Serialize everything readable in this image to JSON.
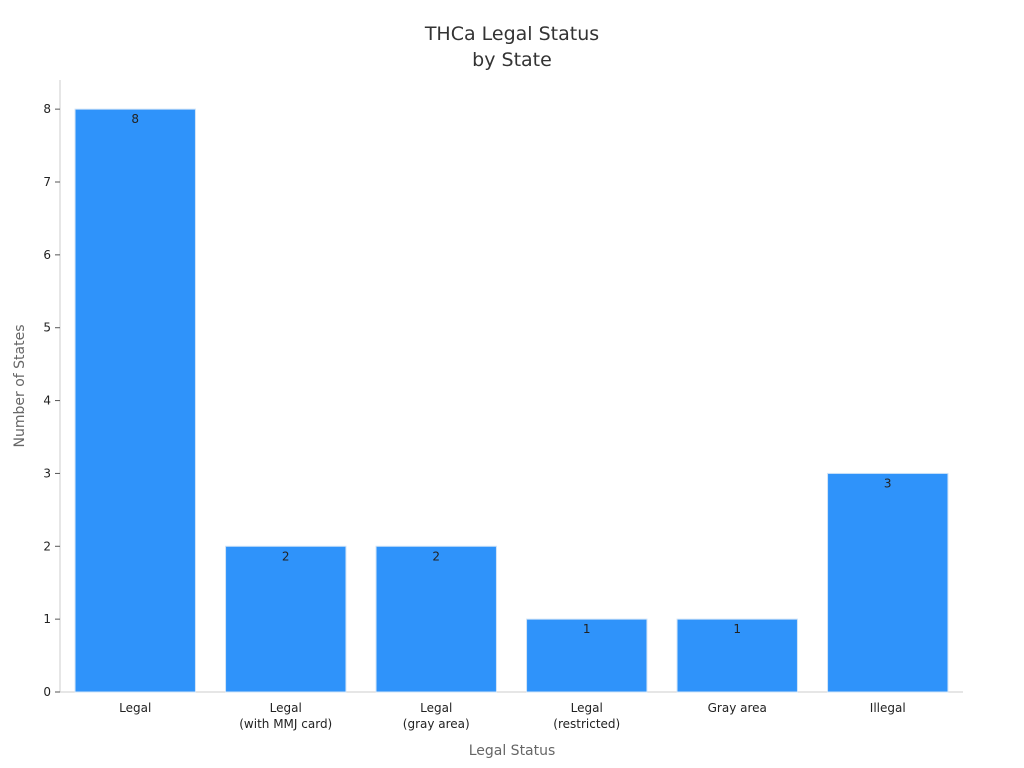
{
  "chart_data": {
    "type": "bar",
    "title": "THCa Legal Status\nby State",
    "x_label": "Legal Status",
    "y_label": "Number of States",
    "categories": [
      "Legal",
      "Legal\n(with MMJ card)",
      "Legal\n(gray area)",
      "Legal\n(restricted)",
      "Gray area",
      "Illegal"
    ],
    "values": [
      8,
      2,
      2,
      1,
      1,
      3
    ],
    "color": "#2f93fa",
    "ylim": [
      0,
      8.4
    ],
    "yticks": [
      0,
      1,
      2,
      3,
      4,
      5,
      6,
      7,
      8
    ],
    "grid": false
  }
}
